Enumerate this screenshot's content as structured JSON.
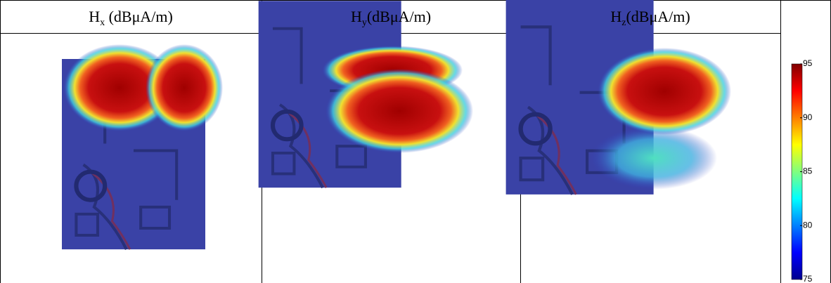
{
  "table": {
    "headers": [
      {
        "main": "H",
        "sub": "x",
        "unit": " (dBμA/m)"
      },
      {
        "main": "H",
        "sub": "y",
        "unit": "(dBμA/m)"
      },
      {
        "main": "H",
        "sub": "z",
        "unit": "(dBμA/m)"
      }
    ]
  },
  "colorbar": {
    "lim": [
      75,
      95
    ],
    "ticks": [
      95,
      90,
      85,
      80,
      75
    ]
  }
}
